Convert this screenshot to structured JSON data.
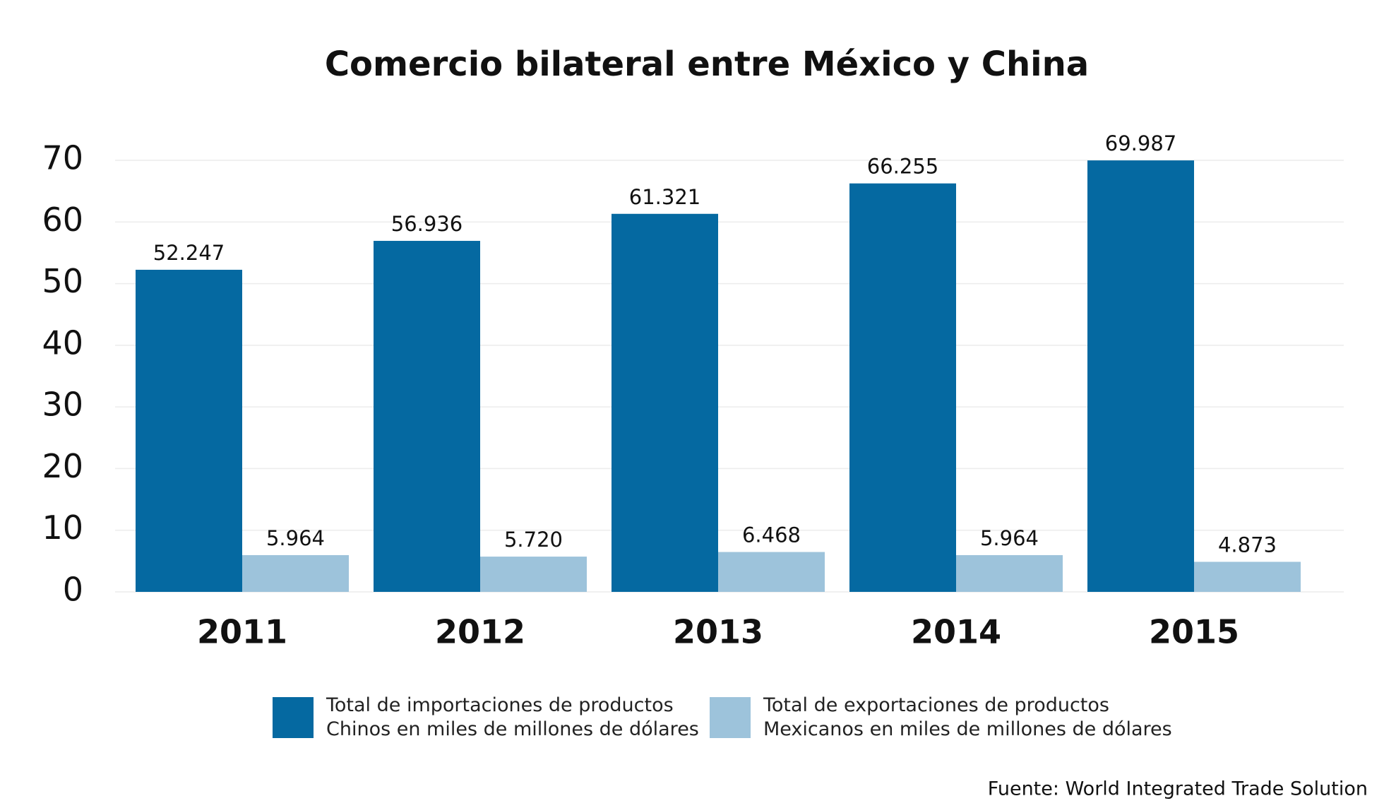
{
  "chart_data": {
    "type": "bar",
    "title": "Comercio bilateral entre México y China",
    "categories": [
      "2011",
      "2012",
      "2013",
      "2014",
      "2015"
    ],
    "series": [
      {
        "name": "Total de importaciones de productos\nChinos en miles de millones de dólares",
        "color": "#0569a1",
        "values": [
          52.247,
          56.936,
          61.321,
          66.255,
          69.987
        ],
        "value_labels": [
          "52.247",
          "56.936",
          "61.321",
          "66.255",
          "69.987"
        ]
      },
      {
        "name": "Total de exportaciones de productos\nMexicanos en miles de millones de dólares",
        "color": "#9dc3db",
        "values": [
          5.964,
          5.72,
          6.468,
          5.964,
          4.873
        ],
        "value_labels": [
          "5.964",
          "5.720",
          "6.468",
          "5.964",
          "4.873"
        ]
      }
    ],
    "ylim": [
      0,
      70
    ],
    "yticks": [
      0,
      10,
      20,
      30,
      40,
      50,
      60,
      70
    ],
    "grid": true,
    "source": "Fuente: World Integrated Trade Solution"
  }
}
